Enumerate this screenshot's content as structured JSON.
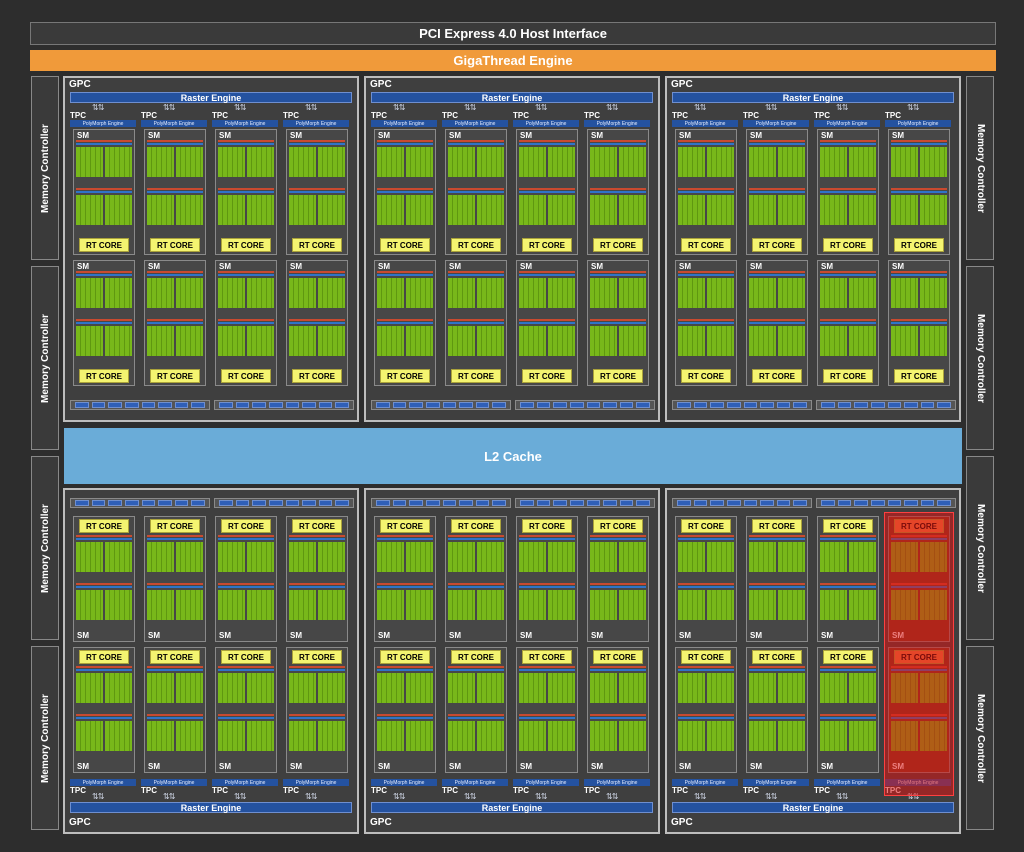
{
  "header": {
    "pcie": "PCI Express 4.0 Host Interface",
    "gigathread": "GigaThread Engine"
  },
  "l2": "L2 Cache",
  "memory_controller": "Memory Controller",
  "gpc": {
    "label": "GPC",
    "raster": "Raster Engine",
    "tpc": "TPC",
    "polymorph": "PolyMorph Engine",
    "sm": "SM",
    "rt_core": "RT CORE"
  },
  "colors": {
    "gigathread": "#f09a3a",
    "l2": "#6aacd8",
    "raster": "#2452a0",
    "cuda_core": "#78b81a",
    "rt_core": "#f4f470",
    "disabled_overlay": "#dc1414"
  },
  "disabled_unit": "bottom-right GPC, last TPC (highlighted red)"
}
